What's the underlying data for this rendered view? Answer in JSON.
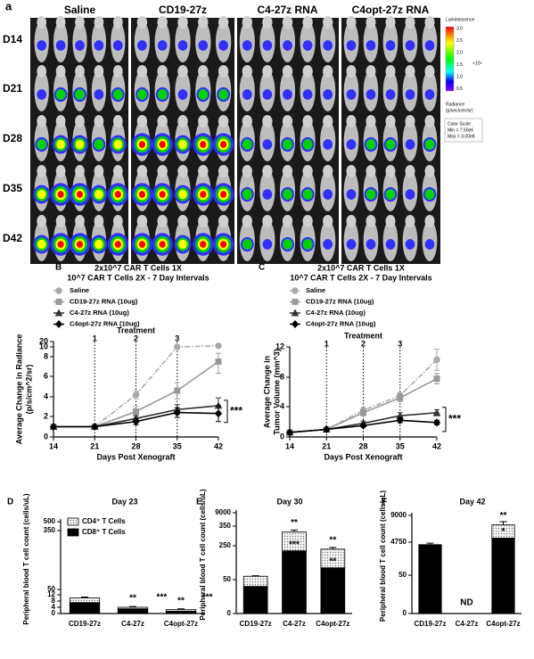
{
  "panel_a": {
    "label": "a",
    "columns": [
      "Saline",
      "CD19-27z",
      "C4-27z RNA",
      "C4opt-27z RNA"
    ],
    "rows": [
      "D14",
      "D21",
      "D28",
      "D35",
      "D42"
    ],
    "colorbar": {
      "title": "Luminescence",
      "ticks": [
        "3.0",
        "2.5",
        "2.0",
        "1.5",
        "1.0",
        "0.5"
      ],
      "exponent": "×10⁸",
      "units": [
        "Radiance",
        "(p/sec/cm²/sr)"
      ],
      "scale": [
        "Color Scale",
        "Min = 7.50e6",
        "Max = 3.00e8"
      ]
    }
  },
  "chart_data": [
    {
      "type": "line",
      "panel": "B",
      "title": [
        "2x10^7 CAR T Cells 1X",
        "10^7 CAR T Cells 2X - 7 Day Intervals"
      ],
      "xlabel": "Days Post Xenograft",
      "ylabel": [
        "Average Change in Radiance",
        "(p/s/cm^2/sr)"
      ],
      "x": [
        14,
        21,
        28,
        35,
        42
      ],
      "xlim": [
        14,
        42
      ],
      "xticks": [
        14,
        21,
        28,
        35,
        42
      ],
      "ylim": [
        0,
        20
      ],
      "yticks": [
        0,
        2,
        4,
        6,
        8,
        10,
        20
      ],
      "treatment": {
        "label": "Treatment",
        "days": [
          21,
          28,
          35
        ],
        "doses": [
          1,
          2,
          3
        ]
      },
      "annotation": "***",
      "series": [
        {
          "name": "Saline",
          "color": "#aaaaaa",
          "values": [
            1,
            1,
            4.2,
            10,
            12
          ],
          "errors": [
            0,
            0,
            0.4,
            0.5,
            1
          ]
        },
        {
          "name": "CD19-27z RNA (10ug)",
          "color": "#999999",
          "values": [
            1,
            1,
            2.5,
            4.6,
            7.5
          ],
          "errors": [
            0,
            0,
            0.5,
            0.8,
            1.2
          ]
        },
        {
          "name": "C4-27z RNA (10ug)",
          "color": "#333333",
          "values": [
            1,
            1,
            1.8,
            2.7,
            3.1
          ],
          "errors": [
            0,
            0,
            0.3,
            0.5,
            0.8
          ]
        },
        {
          "name": "C4opt-27z RNA (10ug)",
          "color": "#000000",
          "values": [
            1,
            1,
            1.5,
            2.4,
            2.3
          ],
          "errors": [
            0,
            0,
            0.3,
            0.5,
            0.8
          ]
        }
      ]
    },
    {
      "type": "line",
      "panel": "C",
      "title": [
        "2x10^7 CAR T Cells 1X",
        "10^7 CAR T Cells 2X - 7 Day Intervals"
      ],
      "xlabel": "Days Post Xenograft",
      "ylabel": [
        "Average Change in",
        "Tumor Volume (mm^3)"
      ],
      "x": [
        14,
        21,
        28,
        35,
        42
      ],
      "xlim": [
        14,
        42
      ],
      "xticks": [
        14,
        21,
        28,
        35,
        42
      ],
      "ylim": [
        0,
        12
      ],
      "yticks": [
        0,
        4,
        8,
        12
      ],
      "treatment": {
        "label": "Treatment",
        "days": [
          21,
          28,
          35
        ],
        "doses": [
          1,
          2,
          3
        ]
      },
      "annotation": "***",
      "series": [
        {
          "name": "Saline",
          "color": "#aaaaaa",
          "values": [
            0.6,
            1,
            3.5,
            5.5,
            10.3
          ],
          "errors": [
            0,
            0,
            0.4,
            0.4,
            1.4
          ]
        },
        {
          "name": "CD19-27z RNA (10ug)",
          "color": "#999999",
          "values": [
            0.6,
            1,
            3.2,
            5.2,
            7.8
          ],
          "errors": [
            0,
            0,
            0.4,
            0.5,
            0.7
          ]
        },
        {
          "name": "C4-27z RNA (10ug)",
          "color": "#333333",
          "values": [
            0.6,
            1,
            1.8,
            2.8,
            3.2
          ],
          "errors": [
            0,
            0,
            0.3,
            0.4,
            0.4
          ]
        },
        {
          "name": "C4opt-27z RNA (10ug)",
          "color": "#000000",
          "values": [
            0.6,
            1,
            1.5,
            2.2,
            1.9
          ],
          "errors": [
            0,
            0,
            0.2,
            0.3,
            0.3
          ]
        }
      ]
    },
    {
      "type": "stacked_bar",
      "panel": "D",
      "title": "Day 23",
      "ylabel": "Peripheral blood T cell count (cells/uL)",
      "categories": [
        "CD19-27z",
        "C4-27z",
        "C4opt-27z"
      ],
      "ylim": [
        0,
        500
      ],
      "yticks": [
        0,
        4,
        8,
        12,
        50,
        350,
        500
      ],
      "legend": true,
      "series": [
        {
          "name": "CD8⁺ T Cells",
          "color": "#000000",
          "values": [
            7,
            3,
            1.5
          ],
          "errors": [
            0.5,
            0.4,
            0.3
          ]
        },
        {
          "name": "CD4⁺ T Cells",
          "color": "#e6e6e6",
          "values": [
            3,
            1,
            1
          ],
          "errors": [
            0.6,
            0.5,
            0.5
          ]
        }
      ],
      "annotations": [
        "**",
        "***",
        "**",
        "***"
      ]
    },
    {
      "type": "stacked_bar",
      "panel": "E",
      "title": "Day 30",
      "ylabel": "Peripheral blood T cell count (cells/uL)",
      "categories": [
        "CD19-27z",
        "C4-27z",
        "C4opt-27z"
      ],
      "ylim": [
        0,
        9000
      ],
      "yticks": [
        0,
        50,
        250,
        350,
        9000
      ],
      "legend": false,
      "series": [
        {
          "color": "#000000",
          "values": [
            40,
            220,
            120
          ],
          "errors": [
            3,
            15,
            15
          ]
        },
        {
          "color": "#e6e6e6",
          "values": [
            30,
            100,
            110
          ],
          "errors": [
            3,
            10,
            10
          ]
        }
      ],
      "annotations": [
        "***",
        "**",
        "**",
        "**"
      ]
    },
    {
      "type": "stacked_bar",
      "panel": "F",
      "title": "Day 42",
      "ylabel": "Peripheral blood T cell count (cells/uL)",
      "categories": [
        "CD19-27z",
        "C4-27z",
        "C4opt-27z"
      ],
      "ylim": [
        0,
        9000
      ],
      "yticks": [
        0,
        50,
        4750,
        9000
      ],
      "legend": false,
      "series": [
        {
          "color": "#000000",
          "values": [
            4400,
            null,
            5400
          ],
          "errors": [
            200,
            null,
            300
          ]
        },
        {
          "color": "#e6e6e6",
          "values": [
            null,
            null,
            2100
          ],
          "errors": [
            null,
            null,
            500
          ]
        }
      ],
      "annotations": [
        "*",
        "**",
        "ND"
      ]
    }
  ]
}
